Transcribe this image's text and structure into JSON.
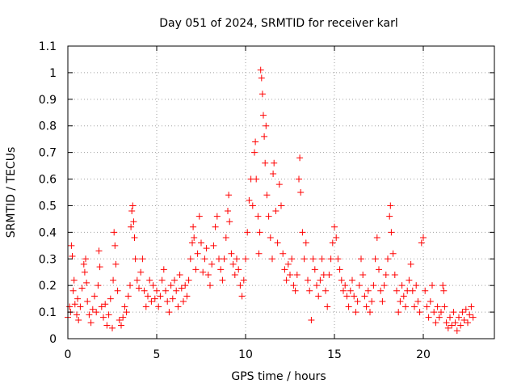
{
  "chart_data": {
    "type": "scatter",
    "title": "Day 051 of 2024, SRMTID for receiver karl",
    "xlabel": "GPS time / hours",
    "ylabel": "SRMTID / TECUs",
    "xlim": [
      0,
      24
    ],
    "ylim": [
      0,
      1.1
    ],
    "xticks": [
      0,
      5,
      10,
      15,
      20
    ],
    "xtick_labels": [
      "0",
      "5",
      "10",
      "15",
      "20"
    ],
    "yticks": [
      0,
      0.1,
      0.2,
      0.3,
      0.4,
      0.5,
      0.6,
      0.7,
      0.8,
      0.9,
      1,
      1.1
    ],
    "ytick_labels": [
      "0",
      "0.1",
      "0.2",
      "0.3",
      "0.4",
      "0.5",
      "0.6",
      "0.7",
      "0.8",
      "0.9",
      "1",
      "1.1"
    ],
    "grid": true,
    "marker": "+",
    "series": [
      {
        "name": "SRMTID",
        "color": "#ff0000",
        "points": [
          [
            0.0,
            0.08
          ],
          [
            0.1,
            0.12
          ],
          [
            0.15,
            0.1
          ],
          [
            0.2,
            0.35
          ],
          [
            0.25,
            0.31
          ],
          [
            0.3,
            0.18
          ],
          [
            0.35,
            0.22
          ],
          [
            0.4,
            0.13
          ],
          [
            0.5,
            0.09
          ],
          [
            0.55,
            0.15
          ],
          [
            0.6,
            0.07
          ],
          [
            0.7,
            0.12
          ],
          [
            0.8,
            0.19
          ],
          [
            0.9,
            0.28
          ],
          [
            0.95,
            0.25
          ],
          [
            1.0,
            0.3
          ],
          [
            1.05,
            0.21
          ],
          [
            1.1,
            0.14
          ],
          [
            1.2,
            0.09
          ],
          [
            1.3,
            0.06
          ],
          [
            1.4,
            0.11
          ],
          [
            1.5,
            0.16
          ],
          [
            1.6,
            0.1
          ],
          [
            1.7,
            0.2
          ],
          [
            1.75,
            0.33
          ],
          [
            1.8,
            0.27
          ],
          [
            1.9,
            0.12
          ],
          [
            2.0,
            0.08
          ],
          [
            2.1,
            0.13
          ],
          [
            2.2,
            0.05
          ],
          [
            2.3,
            0.09
          ],
          [
            2.4,
            0.15
          ],
          [
            2.5,
            0.04
          ],
          [
            2.55,
            0.22
          ],
          [
            2.6,
            0.4
          ],
          [
            2.65,
            0.35
          ],
          [
            2.7,
            0.28
          ],
          [
            2.8,
            0.18
          ],
          [
            2.9,
            0.07
          ],
          [
            3.0,
            0.05
          ],
          [
            3.1,
            0.08
          ],
          [
            3.2,
            0.12
          ],
          [
            3.3,
            0.1
          ],
          [
            3.4,
            0.16
          ],
          [
            3.5,
            0.2
          ],
          [
            3.55,
            0.42
          ],
          [
            3.6,
            0.48
          ],
          [
            3.65,
            0.5
          ],
          [
            3.7,
            0.44
          ],
          [
            3.75,
            0.38
          ],
          [
            3.8,
            0.3
          ],
          [
            3.9,
            0.22
          ],
          [
            4.0,
            0.19
          ],
          [
            4.1,
            0.25
          ],
          [
            4.2,
            0.3
          ],
          [
            4.3,
            0.18
          ],
          [
            4.4,
            0.12
          ],
          [
            4.5,
            0.16
          ],
          [
            4.6,
            0.22
          ],
          [
            4.7,
            0.14
          ],
          [
            4.8,
            0.2
          ],
          [
            4.9,
            0.15
          ],
          [
            5.0,
            0.18
          ],
          [
            5.1,
            0.12
          ],
          [
            5.2,
            0.16
          ],
          [
            5.3,
            0.22
          ],
          [
            5.4,
            0.26
          ],
          [
            5.5,
            0.18
          ],
          [
            5.6,
            0.14
          ],
          [
            5.7,
            0.1
          ],
          [
            5.8,
            0.2
          ],
          [
            5.9,
            0.15
          ],
          [
            6.0,
            0.22
          ],
          [
            6.1,
            0.18
          ],
          [
            6.2,
            0.12
          ],
          [
            6.3,
            0.24
          ],
          [
            6.4,
            0.19
          ],
          [
            6.5,
            0.14
          ],
          [
            6.6,
            0.2
          ],
          [
            6.7,
            0.16
          ],
          [
            6.8,
            0.22
          ],
          [
            6.9,
            0.3
          ],
          [
            7.0,
            0.36
          ],
          [
            7.05,
            0.42
          ],
          [
            7.1,
            0.38
          ],
          [
            7.2,
            0.26
          ],
          [
            7.3,
            0.32
          ],
          [
            7.4,
            0.46
          ],
          [
            7.5,
            0.36
          ],
          [
            7.6,
            0.25
          ],
          [
            7.7,
            0.3
          ],
          [
            7.8,
            0.34
          ],
          [
            7.9,
            0.24
          ],
          [
            8.0,
            0.2
          ],
          [
            8.1,
            0.28
          ],
          [
            8.2,
            0.35
          ],
          [
            8.3,
            0.42
          ],
          [
            8.4,
            0.46
          ],
          [
            8.5,
            0.3
          ],
          [
            8.6,
            0.26
          ],
          [
            8.7,
            0.22
          ],
          [
            8.8,
            0.3
          ],
          [
            8.9,
            0.38
          ],
          [
            9.0,
            0.48
          ],
          [
            9.05,
            0.54
          ],
          [
            9.1,
            0.44
          ],
          [
            9.2,
            0.32
          ],
          [
            9.3,
            0.28
          ],
          [
            9.4,
            0.24
          ],
          [
            9.5,
            0.3
          ],
          [
            9.6,
            0.26
          ],
          [
            9.7,
            0.2
          ],
          [
            9.8,
            0.16
          ],
          [
            9.9,
            0.22
          ],
          [
            10.0,
            0.3
          ],
          [
            10.1,
            0.4
          ],
          [
            10.2,
            0.52
          ],
          [
            10.3,
            0.6
          ],
          [
            10.4,
            0.5
          ],
          [
            10.5,
            0.7
          ],
          [
            10.55,
            0.74
          ],
          [
            10.6,
            0.6
          ],
          [
            10.7,
            0.46
          ],
          [
            10.75,
            0.32
          ],
          [
            10.8,
            0.4
          ],
          [
            10.85,
            1.01
          ],
          [
            10.9,
            0.98
          ],
          [
            10.95,
            0.92
          ],
          [
            11.0,
            0.84
          ],
          [
            11.05,
            0.76
          ],
          [
            11.1,
            0.66
          ],
          [
            11.15,
            0.8
          ],
          [
            11.2,
            0.54
          ],
          [
            11.3,
            0.46
          ],
          [
            11.4,
            0.38
          ],
          [
            11.5,
            0.3
          ],
          [
            11.55,
            0.62
          ],
          [
            11.6,
            0.66
          ],
          [
            11.7,
            0.48
          ],
          [
            11.8,
            0.36
          ],
          [
            11.9,
            0.58
          ],
          [
            12.0,
            0.5
          ],
          [
            12.1,
            0.32
          ],
          [
            12.2,
            0.26
          ],
          [
            12.3,
            0.22
          ],
          [
            12.4,
            0.28
          ],
          [
            12.5,
            0.24
          ],
          [
            12.6,
            0.3
          ],
          [
            12.7,
            0.2
          ],
          [
            12.8,
            0.18
          ],
          [
            12.9,
            0.24
          ],
          [
            13.0,
            0.6
          ],
          [
            13.05,
            0.68
          ],
          [
            13.1,
            0.55
          ],
          [
            13.2,
            0.4
          ],
          [
            13.3,
            0.3
          ],
          [
            13.4,
            0.36
          ],
          [
            13.5,
            0.22
          ],
          [
            13.6,
            0.18
          ],
          [
            13.7,
            0.07
          ],
          [
            13.8,
            0.3
          ],
          [
            13.9,
            0.26
          ],
          [
            14.0,
            0.2
          ],
          [
            14.1,
            0.16
          ],
          [
            14.2,
            0.22
          ],
          [
            14.3,
            0.3
          ],
          [
            14.4,
            0.24
          ],
          [
            14.5,
            0.18
          ],
          [
            14.6,
            0.12
          ],
          [
            14.7,
            0.24
          ],
          [
            14.8,
            0.3
          ],
          [
            14.9,
            0.36
          ],
          [
            15.0,
            0.42
          ],
          [
            15.1,
            0.38
          ],
          [
            15.2,
            0.3
          ],
          [
            15.3,
            0.26
          ],
          [
            15.4,
            0.22
          ],
          [
            15.5,
            0.18
          ],
          [
            15.6,
            0.2
          ],
          [
            15.7,
            0.16
          ],
          [
            15.8,
            0.12
          ],
          [
            15.9,
            0.18
          ],
          [
            16.0,
            0.22
          ],
          [
            16.1,
            0.16
          ],
          [
            16.2,
            0.1
          ],
          [
            16.3,
            0.14
          ],
          [
            16.4,
            0.2
          ],
          [
            16.5,
            0.3
          ],
          [
            16.6,
            0.24
          ],
          [
            16.7,
            0.16
          ],
          [
            16.8,
            0.12
          ],
          [
            16.9,
            0.18
          ],
          [
            17.0,
            0.1
          ],
          [
            17.1,
            0.14
          ],
          [
            17.2,
            0.2
          ],
          [
            17.3,
            0.3
          ],
          [
            17.4,
            0.38
          ],
          [
            17.5,
            0.26
          ],
          [
            17.6,
            0.18
          ],
          [
            17.7,
            0.14
          ],
          [
            17.8,
            0.2
          ],
          [
            17.9,
            0.24
          ],
          [
            18.0,
            0.3
          ],
          [
            18.1,
            0.46
          ],
          [
            18.15,
            0.5
          ],
          [
            18.2,
            0.4
          ],
          [
            18.3,
            0.32
          ],
          [
            18.4,
            0.24
          ],
          [
            18.5,
            0.18
          ],
          [
            18.6,
            0.1
          ],
          [
            18.7,
            0.14
          ],
          [
            18.8,
            0.2
          ],
          [
            18.9,
            0.16
          ],
          [
            19.0,
            0.12
          ],
          [
            19.1,
            0.18
          ],
          [
            19.2,
            0.22
          ],
          [
            19.3,
            0.28
          ],
          [
            19.4,
            0.18
          ],
          [
            19.5,
            0.12
          ],
          [
            19.6,
            0.2
          ],
          [
            19.7,
            0.14
          ],
          [
            19.8,
            0.1
          ],
          [
            19.9,
            0.36
          ],
          [
            20.0,
            0.38
          ],
          [
            20.1,
            0.18
          ],
          [
            20.2,
            0.12
          ],
          [
            20.3,
            0.08
          ],
          [
            20.4,
            0.14
          ],
          [
            20.5,
            0.2
          ],
          [
            20.6,
            0.1
          ],
          [
            20.7,
            0.06
          ],
          [
            20.8,
            0.12
          ],
          [
            20.9,
            0.08
          ],
          [
            21.0,
            0.1
          ],
          [
            21.1,
            0.2
          ],
          [
            21.15,
            0.18
          ],
          [
            21.2,
            0.12
          ],
          [
            21.3,
            0.06
          ],
          [
            21.4,
            0.04
          ],
          [
            21.5,
            0.08
          ],
          [
            21.6,
            0.05
          ],
          [
            21.7,
            0.1
          ],
          [
            21.8,
            0.06
          ],
          [
            21.9,
            0.03
          ],
          [
            22.0,
            0.08
          ],
          [
            22.1,
            0.05
          ],
          [
            22.2,
            0.1
          ],
          [
            22.3,
            0.07
          ],
          [
            22.4,
            0.11
          ],
          [
            22.5,
            0.06
          ],
          [
            22.6,
            0.09
          ],
          [
            22.7,
            0.12
          ],
          [
            22.8,
            0.08
          ]
        ]
      }
    ]
  }
}
